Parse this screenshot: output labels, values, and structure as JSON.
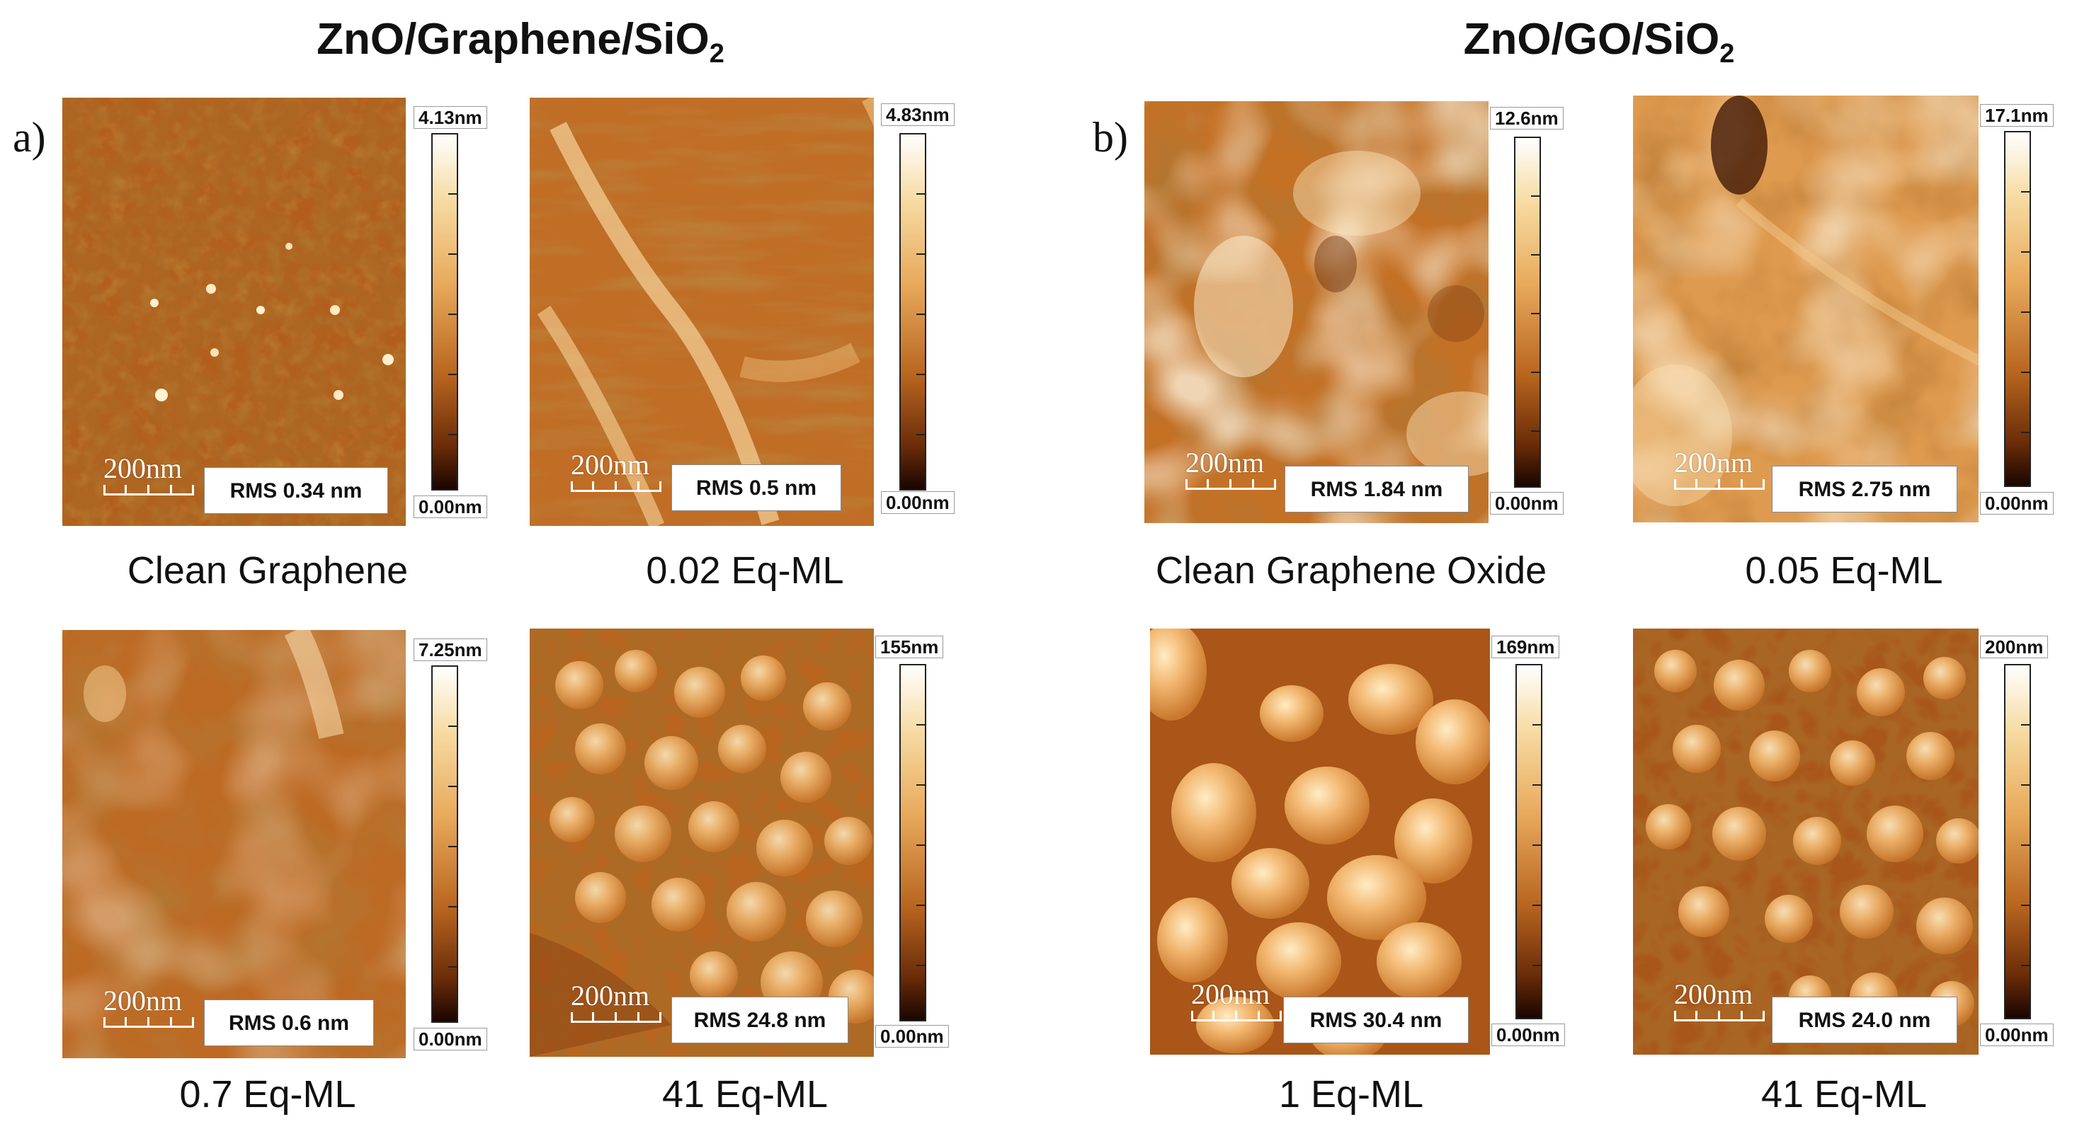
{
  "figure": {
    "group_a": {
      "title_main": "ZnO/Graphene/SiO",
      "title_sub": "2",
      "letter": "a)"
    },
    "group_b": {
      "title_main": "ZnO/GO/SiO",
      "title_sub": "2",
      "letter": "b)"
    },
    "scalebar_label": "200nm",
    "panels": [
      {
        "id": "a1",
        "scale_max": "4.13nm",
        "scale_min": "0.00nm",
        "rms": "RMS 0.34 nm",
        "caption": "Clean Graphene"
      },
      {
        "id": "a2",
        "scale_max": "4.83nm",
        "scale_min": "0.00nm",
        "rms": "RMS 0.5 nm",
        "caption": "0.02 Eq-ML"
      },
      {
        "id": "a3",
        "scale_max": "7.25nm",
        "scale_min": "0.00nm",
        "rms": "RMS 0.6 nm",
        "caption": "0.7 Eq-ML"
      },
      {
        "id": "a4",
        "scale_max": "155nm",
        "scale_min": "0.00nm",
        "rms": "RMS 24.8 nm",
        "caption": "41 Eq-ML"
      },
      {
        "id": "b1",
        "scale_max": "12.6nm",
        "scale_min": "0.00nm",
        "rms": "RMS 1.84 nm",
        "caption": "Clean Graphene Oxide"
      },
      {
        "id": "b2",
        "scale_max": "17.1nm",
        "scale_min": "0.00nm",
        "rms": "RMS 2.75 nm",
        "caption": "0.05 Eq-ML"
      },
      {
        "id": "b3",
        "scale_max": "169nm",
        "scale_min": "0.00nm",
        "rms": "RMS 30.4 nm",
        "caption": "1 Eq-ML"
      },
      {
        "id": "b4",
        "scale_max": "200nm",
        "scale_min": "0.00nm",
        "rms": "RMS 24.0 nm",
        "caption": "41 Eq-ML"
      }
    ]
  },
  "colors": {
    "afm_dark": "#5a2406",
    "afm_mid": "#b5641f",
    "afm_light": "#f6c98a",
    "afm_highlight": "#fff3d6"
  }
}
